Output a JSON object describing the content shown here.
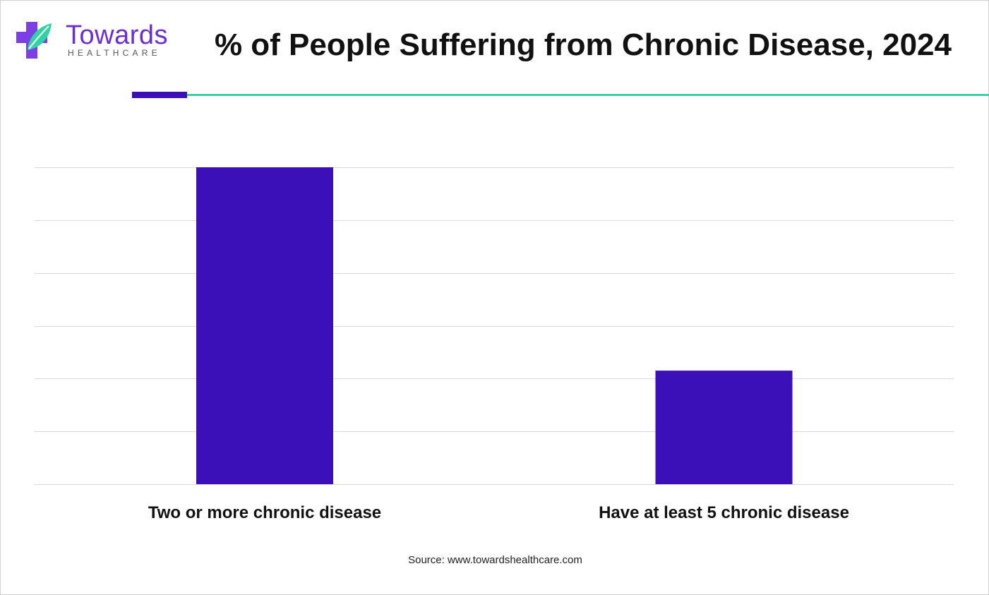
{
  "brand": {
    "name": "Towards",
    "subtitle": "HEALTHCARE"
  },
  "chart_data": {
    "type": "bar",
    "title": "% of People Suffering from Chronic Disease, 2024",
    "categories": [
      "Two or more chronic disease",
      "Have at least 5 chronic disease"
    ],
    "values": [
      60,
      21.5
    ],
    "ylim": [
      0,
      60
    ],
    "ytick_step": 10,
    "grid": true,
    "show_y_tick_labels": false,
    "colors": {
      "bar": "#3c10b8",
      "grid": "#d9d9d9",
      "accent_purple": "#3c10b8",
      "accent_green": "#3ed1a3"
    }
  },
  "source": "Source: www.towardshealthcare.com"
}
